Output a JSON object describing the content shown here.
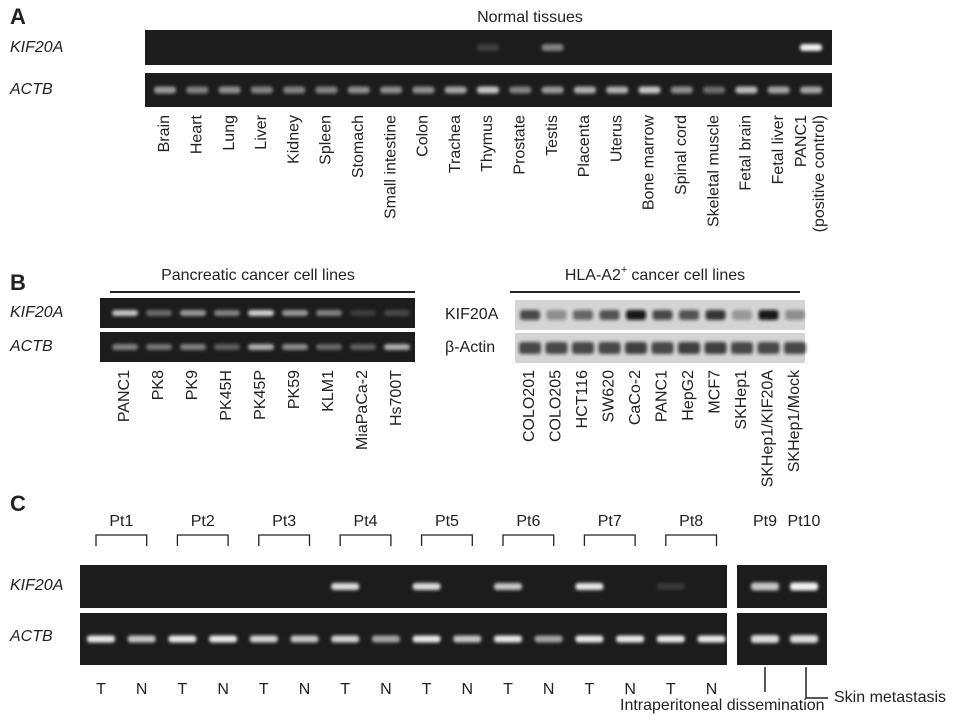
{
  "panels": {
    "a": {
      "label": "A",
      "title": "Normal tissues",
      "rows": [
        "KIF20A",
        "ACTB"
      ],
      "lanes": [
        [
          "Brain"
        ],
        [
          "Heart"
        ],
        [
          "Lung"
        ],
        [
          "Liver"
        ],
        [
          "Kidney"
        ],
        [
          "Spleen"
        ],
        [
          "Stomach"
        ],
        [
          "Small intestine"
        ],
        [
          "Colon"
        ],
        [
          "Trachea"
        ],
        [
          "Thymus"
        ],
        [
          "Prostate"
        ],
        [
          "Testis"
        ],
        [
          "Placenta"
        ],
        [
          "Uterus"
        ],
        [
          "Bone marrow"
        ],
        [
          "Spinal cord"
        ],
        [
          "Skeletal muscle"
        ],
        [
          "Fetal brain"
        ],
        [
          "Fetal liver"
        ],
        [
          "PANC1",
          "(positive control)"
        ]
      ]
    },
    "b": {
      "label": "B",
      "left": {
        "title": "Pancreatic cancer cell lines",
        "rows": [
          "KIF20A",
          "ACTB"
        ],
        "lanes": [
          "PANC1",
          "PK8",
          "PK9",
          "PK45H",
          "PK45P",
          "PK59",
          "KLM1",
          "MiaPaCa-2",
          "Hs700T"
        ]
      },
      "right": {
        "title": [
          "HLA-A2",
          "+",
          "cancer cell lines"
        ],
        "rows": [
          "KIF20A",
          "β-Actin"
        ],
        "lanes": [
          "COLO201",
          "COLO205",
          "HCT116",
          "SW620",
          "CaCo-2",
          "PANC1",
          "HepG2",
          "MCF7",
          "SKHep1",
          "SKHep1/KIF20A",
          "SKHep1/Mock"
        ]
      }
    },
    "c": {
      "label": "C",
      "rows": [
        "KIF20A",
        "ACTB"
      ],
      "patients": [
        "Pt1",
        "Pt2",
        "Pt3",
        "Pt4",
        "Pt5",
        "Pt6",
        "Pt7",
        "Pt8"
      ],
      "extra_patients": [
        "Pt9",
        "Pt10"
      ],
      "lane_labels": [
        "T",
        "N"
      ],
      "annotations": [
        "Skin metastasis",
        "Intraperitoneal dissemination"
      ]
    }
  }
}
